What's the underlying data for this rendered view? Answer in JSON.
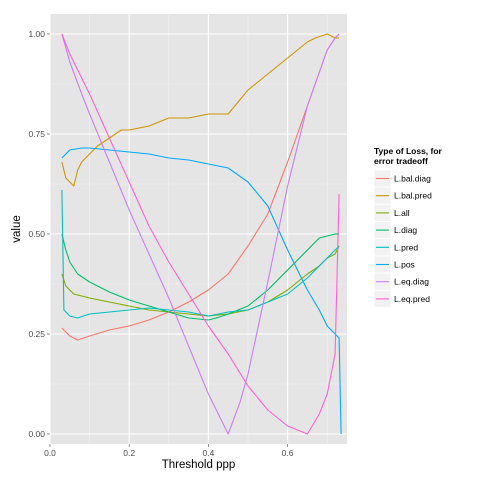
{
  "chart_data": {
    "type": "line",
    "xlabel": "Threshold ppp",
    "ylabel": "value",
    "xlim": [
      0.0,
      0.75
    ],
    "ylim": [
      0.0,
      1.0
    ],
    "x_ticks": [
      0.0,
      0.2,
      0.4,
      0.6
    ],
    "x_tick_labels": [
      "0.0",
      "0.2",
      "0.4",
      "0.6"
    ],
    "y_ticks": [
      0.0,
      0.25,
      0.5,
      0.75,
      1.0
    ],
    "y_tick_labels": [
      "0.00",
      "0.25",
      "0.50",
      "0.75",
      "1.00"
    ],
    "grid": true,
    "legend_position": "right",
    "legend_title": [
      "Type of Loss, for",
      "error tradeoff"
    ],
    "series": [
      {
        "name": "L.bal.diag",
        "color": "#F8766D",
        "x": [
          0.03,
          0.05,
          0.07,
          0.1,
          0.15,
          0.2,
          0.25,
          0.3,
          0.35,
          0.4,
          0.45,
          0.5,
          0.55,
          0.6,
          0.65,
          0.7,
          0.72,
          0.73
        ],
        "y": [
          0.265,
          0.245,
          0.235,
          0.245,
          0.26,
          0.27,
          0.285,
          0.305,
          0.33,
          0.36,
          0.4,
          0.47,
          0.55,
          0.68,
          0.82,
          0.96,
          0.99,
          1.0
        ]
      },
      {
        "name": "L.bal.pred",
        "color": "#CD9600",
        "x": [
          0.03,
          0.04,
          0.06,
          0.07,
          0.08,
          0.1,
          0.12,
          0.15,
          0.18,
          0.2,
          0.25,
          0.3,
          0.35,
          0.4,
          0.43,
          0.45,
          0.5,
          0.55,
          0.6,
          0.65,
          0.67,
          0.7,
          0.72,
          0.73
        ],
        "y": [
          0.68,
          0.64,
          0.62,
          0.66,
          0.68,
          0.7,
          0.72,
          0.74,
          0.76,
          0.76,
          0.77,
          0.79,
          0.79,
          0.8,
          0.8,
          0.8,
          0.86,
          0.9,
          0.94,
          0.98,
          0.99,
          1.0,
          0.99,
          0.99
        ]
      },
      {
        "name": "L.all",
        "color": "#7CAE00",
        "x": [
          0.03,
          0.04,
          0.06,
          0.08,
          0.1,
          0.15,
          0.2,
          0.25,
          0.3,
          0.35,
          0.4,
          0.45,
          0.5,
          0.55,
          0.6,
          0.65,
          0.68,
          0.7,
          0.72,
          0.73
        ],
        "y": [
          0.4,
          0.37,
          0.35,
          0.345,
          0.34,
          0.33,
          0.32,
          0.31,
          0.305,
          0.3,
          0.295,
          0.3,
          0.31,
          0.33,
          0.36,
          0.4,
          0.42,
          0.44,
          0.45,
          0.47
        ]
      },
      {
        "name": "L.diag",
        "color": "#00BE67",
        "x": [
          0.03,
          0.04,
          0.05,
          0.07,
          0.1,
          0.15,
          0.2,
          0.25,
          0.3,
          0.35,
          0.4,
          0.42,
          0.45,
          0.5,
          0.55,
          0.6,
          0.65,
          0.68,
          0.7,
          0.72,
          0.73
        ],
        "y": [
          0.5,
          0.46,
          0.43,
          0.4,
          0.38,
          0.355,
          0.335,
          0.32,
          0.305,
          0.29,
          0.285,
          0.29,
          0.3,
          0.32,
          0.36,
          0.41,
          0.46,
          0.49,
          0.495,
          0.5,
          0.5
        ]
      },
      {
        "name": "L.pred",
        "color": "#00BFC4",
        "x": [
          0.03,
          0.035,
          0.05,
          0.07,
          0.1,
          0.15,
          0.2,
          0.25,
          0.3,
          0.35,
          0.4,
          0.45,
          0.5,
          0.55,
          0.6,
          0.65,
          0.68,
          0.7,
          0.72,
          0.73
        ],
        "y": [
          0.61,
          0.31,
          0.295,
          0.29,
          0.3,
          0.305,
          0.31,
          0.315,
          0.31,
          0.305,
          0.295,
          0.305,
          0.31,
          0.33,
          0.35,
          0.39,
          0.42,
          0.44,
          0.46,
          0.47
        ]
      },
      {
        "name": "L.pos",
        "color": "#00A9FF",
        "x": [
          0.03,
          0.05,
          0.08,
          0.1,
          0.15,
          0.2,
          0.25,
          0.3,
          0.35,
          0.4,
          0.45,
          0.5,
          0.55,
          0.6,
          0.65,
          0.68,
          0.7,
          0.72,
          0.73,
          0.735
        ],
        "y": [
          0.69,
          0.71,
          0.715,
          0.715,
          0.71,
          0.705,
          0.7,
          0.69,
          0.685,
          0.675,
          0.665,
          0.63,
          0.57,
          0.46,
          0.36,
          0.31,
          0.27,
          0.25,
          0.24,
          0.0
        ]
      },
      {
        "name": "L.eq.diag",
        "color": "#C77CFF",
        "x": [
          0.03,
          0.05,
          0.08,
          0.1,
          0.15,
          0.2,
          0.25,
          0.3,
          0.35,
          0.4,
          0.43,
          0.45,
          0.48,
          0.5,
          0.55,
          0.6,
          0.65,
          0.7,
          0.72,
          0.73
        ],
        "y": [
          1.0,
          0.93,
          0.85,
          0.8,
          0.68,
          0.56,
          0.45,
          0.34,
          0.22,
          0.1,
          0.04,
          0.0,
          0.08,
          0.15,
          0.38,
          0.62,
          0.82,
          0.96,
          0.99,
          1.0
        ]
      },
      {
        "name": "L.eq.pred",
        "color": "#FF61CC",
        "x": [
          0.03,
          0.05,
          0.07,
          0.1,
          0.15,
          0.2,
          0.25,
          0.3,
          0.35,
          0.4,
          0.45,
          0.5,
          0.55,
          0.6,
          0.65,
          0.68,
          0.7,
          0.72,
          0.73
        ],
        "y": [
          1.0,
          0.95,
          0.91,
          0.85,
          0.74,
          0.63,
          0.52,
          0.43,
          0.35,
          0.27,
          0.2,
          0.12,
          0.06,
          0.02,
          0.0,
          0.05,
          0.1,
          0.2,
          0.6
        ]
      }
    ]
  }
}
